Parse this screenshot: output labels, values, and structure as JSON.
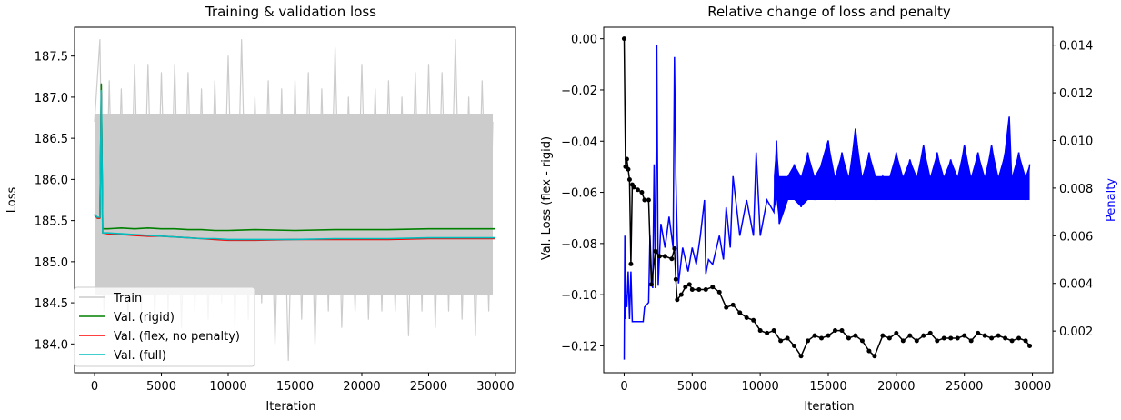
{
  "chart_data": [
    {
      "type": "line",
      "title": "Training & validation loss",
      "xlabel": "Iteration",
      "ylabel": "Loss",
      "xlim": [
        -1500,
        31500
      ],
      "ylim": [
        183.65,
        187.85
      ],
      "xticks": [
        0,
        5000,
        10000,
        15000,
        20000,
        25000,
        30000
      ],
      "xtick_labels": [
        "0",
        "5000",
        "10000",
        "15000",
        "20000",
        "25000",
        "30000"
      ],
      "yticks": [
        184.0,
        184.5,
        185.0,
        185.5,
        186.0,
        186.5,
        187.0,
        187.5
      ],
      "ytick_labels": [
        "184.0",
        "184.5",
        "185.0",
        "185.5",
        "186.0",
        "186.5",
        "187.0",
        "187.5"
      ],
      "legend_position": "lower-left",
      "series": [
        {
          "name": "Train",
          "color": "#cccccc",
          "x": [
            0,
            400,
            700,
            1100,
            1500,
            2000,
            2500,
            3000,
            3500,
            4000,
            4500,
            5000,
            5500,
            6000,
            6500,
            7000,
            7500,
            8000,
            8500,
            9000,
            9500,
            10000,
            10500,
            11000,
            11500,
            12000,
            12500,
            13000,
            13500,
            14000,
            14500,
            15000,
            15500,
            16000,
            16500,
            17000,
            17500,
            18000,
            18500,
            19000,
            19500,
            20000,
            20500,
            21000,
            21500,
            22000,
            22500,
            23000,
            23500,
            24000,
            24500,
            25000,
            25500,
            26000,
            26500,
            27000,
            27500,
            28000,
            28500,
            29000,
            29500,
            29800
          ],
          "y": [
            186.7,
            187.7,
            184.4,
            187.2,
            184.5,
            187.1,
            184.3,
            187.4,
            184.4,
            187.4,
            184.3,
            187.3,
            184.4,
            187.4,
            184.2,
            187.3,
            184.4,
            187.1,
            184.3,
            187.2,
            184.5,
            187.5,
            184.2,
            187.7,
            184.3,
            187.0,
            184.5,
            187.2,
            184.0,
            187.1,
            183.8,
            187.2,
            184.3,
            187.3,
            184.0,
            187.1,
            184.4,
            187.6,
            184.2,
            187.0,
            184.4,
            187.4,
            184.3,
            187.1,
            184.4,
            187.2,
            184.4,
            187.0,
            184.1,
            187.3,
            184.4,
            187.4,
            184.2,
            187.3,
            184.4,
            187.7,
            184.3,
            187.0,
            184.1,
            187.2,
            184.4,
            186.7
          ]
        },
        {
          "name": "Val. (rigid)",
          "color": "#008000",
          "x": [
            0,
            200,
            400,
            500,
            600,
            1000,
            2000,
            3000,
            4000,
            5000,
            6000,
            7000,
            8000,
            9000,
            10000,
            12000,
            15000,
            18000,
            20000,
            22000,
            25000,
            28000,
            30000
          ],
          "y": [
            185.57,
            185.53,
            185.53,
            187.16,
            185.4,
            185.4,
            185.41,
            185.4,
            185.41,
            185.4,
            185.4,
            185.39,
            185.39,
            185.38,
            185.38,
            185.39,
            185.38,
            185.39,
            185.39,
            185.39,
            185.4,
            185.4,
            185.4
          ]
        },
        {
          "name": "Val. (flex, no penalty)",
          "color": "#ff0000",
          "x": [
            0,
            200,
            400,
            500,
            600,
            1000,
            2000,
            3000,
            4000,
            5000,
            6000,
            7000,
            8000,
            9000,
            10000,
            12000,
            15000,
            18000,
            20000,
            22000,
            25000,
            28000,
            30000
          ],
          "y": [
            185.57,
            185.53,
            185.53,
            187.05,
            185.35,
            185.34,
            185.33,
            185.32,
            185.31,
            185.31,
            185.3,
            185.29,
            185.28,
            185.27,
            185.26,
            185.26,
            185.27,
            185.27,
            185.27,
            185.27,
            185.28,
            185.28,
            185.28
          ]
        },
        {
          "name": "Val. (full)",
          "color": "#00bfbf",
          "x": [
            0,
            200,
            400,
            500,
            600,
            1000,
            2000,
            3000,
            4000,
            5000,
            6000,
            7000,
            8000,
            9000,
            10000,
            12000,
            15000,
            18000,
            20000,
            22000,
            25000,
            28000,
            30000
          ],
          "y": [
            185.58,
            185.54,
            185.54,
            187.08,
            185.35,
            185.35,
            185.34,
            185.33,
            185.32,
            185.31,
            185.3,
            185.29,
            185.28,
            185.28,
            185.27,
            185.27,
            185.27,
            185.28,
            185.28,
            185.28,
            185.29,
            185.29,
            185.29
          ]
        }
      ]
    },
    {
      "type": "line",
      "title": "Relative change of loss and penalty",
      "xlabel": "Iteration",
      "ylabel": "Val. Loss (flex - rigid)",
      "ylabel_right": "Penalty",
      "xlim": [
        -1500,
        31500
      ],
      "ylim": [
        -0.1305,
        0.0045
      ],
      "ylim_right": [
        0.00025,
        0.01475
      ],
      "xticks": [
        0,
        5000,
        10000,
        15000,
        20000,
        25000,
        30000
      ],
      "xtick_labels": [
        "0",
        "5000",
        "10000",
        "15000",
        "20000",
        "25000",
        "30000"
      ],
      "yticks": [
        0.0,
        -0.02,
        -0.04,
        -0.06,
        -0.08,
        -0.1,
        -0.12
      ],
      "ytick_labels": [
        "0.00",
        "−0.02",
        "−0.04",
        "−0.06",
        "−0.08",
        "−0.10",
        "−0.12"
      ],
      "yticks_right": [
        0.002,
        0.004,
        0.006,
        0.008,
        0.01,
        0.012,
        0.014
      ],
      "ytick_right_labels": [
        "0.002",
        "0.004",
        "0.006",
        "0.008",
        "0.010",
        "0.012",
        "0.014"
      ],
      "series": [
        {
          "name": "Val. Loss (flex - rigid)",
          "color": "#000000",
          "marker": "dot",
          "axis": "left",
          "x": [
            0,
            100,
            200,
            300,
            400,
            500,
            600,
            700,
            1000,
            1300,
            1500,
            1800,
            2000,
            2300,
            2600,
            3000,
            3500,
            3700,
            3800,
            3900,
            4200,
            4500,
            4800,
            5000,
            5500,
            6000,
            6500,
            7000,
            7500,
            8000,
            8500,
            9000,
            9500,
            10000,
            10500,
            11000,
            11500,
            12000,
            12500,
            13000,
            13500,
            14000,
            14500,
            15000,
            15500,
            16000,
            16500,
            17000,
            17500,
            18000,
            18400,
            19000,
            19500,
            20000,
            20500,
            21000,
            21500,
            22000,
            22500,
            23000,
            23500,
            24000,
            24500,
            25000,
            25500,
            26000,
            26500,
            27000,
            27500,
            28000,
            28500,
            29000,
            29500,
            29800
          ],
          "y": [
            0.0,
            -0.05,
            -0.047,
            -0.051,
            -0.055,
            -0.088,
            -0.057,
            -0.058,
            -0.059,
            -0.06,
            -0.063,
            -0.063,
            -0.096,
            -0.083,
            -0.085,
            -0.085,
            -0.086,
            -0.082,
            -0.094,
            -0.102,
            -0.1,
            -0.097,
            -0.096,
            -0.098,
            -0.098,
            -0.098,
            -0.097,
            -0.099,
            -0.105,
            -0.104,
            -0.107,
            -0.109,
            -0.11,
            -0.114,
            -0.115,
            -0.114,
            -0.118,
            -0.117,
            -0.12,
            -0.124,
            -0.118,
            -0.116,
            -0.117,
            -0.116,
            -0.114,
            -0.114,
            -0.117,
            -0.116,
            -0.118,
            -0.122,
            -0.124,
            -0.116,
            -0.117,
            -0.115,
            -0.118,
            -0.116,
            -0.118,
            -0.116,
            -0.115,
            -0.118,
            -0.117,
            -0.117,
            -0.117,
            -0.116,
            -0.118,
            -0.115,
            -0.116,
            -0.117,
            -0.116,
            -0.117,
            -0.118,
            -0.117,
            -0.118,
            -0.12
          ]
        },
        {
          "name": "Penalty",
          "color": "#0000ff",
          "axis": "right",
          "x": [
            0,
            50,
            100,
            150,
            200,
            300,
            400,
            500,
            600,
            1000,
            1400,
            1500,
            1800,
            1900,
            2000,
            2100,
            2200,
            2300,
            2400,
            2500,
            2700,
            3000,
            3300,
            3600,
            3700,
            3800,
            3900,
            4000,
            4300,
            4700,
            5000,
            5300,
            5600,
            5900,
            6000,
            6200,
            6500,
            7000,
            7300,
            7500,
            7800,
            8000,
            8500,
            9000,
            9500,
            9700,
            10000,
            10500,
            11000,
            11200,
            11400,
            12000,
            12500,
            13000,
            13500,
            14000,
            14500,
            15000,
            15500,
            16000,
            16500,
            17000,
            17500,
            18000,
            18500,
            19000,
            19500,
            20000,
            20500,
            21000,
            21500,
            22000,
            22500,
            23000,
            23500,
            24000,
            24500,
            25000,
            25500,
            26000,
            26500,
            27000,
            27500,
            28000,
            28300,
            28500,
            29000,
            29500,
            29800
          ],
          "y": [
            0.0008,
            0.006,
            0.0025,
            0.0035,
            0.003,
            0.0045,
            0.0025,
            0.0045,
            0.0024,
            0.0024,
            0.0024,
            0.003,
            0.0032,
            0.006,
            0.0045,
            0.0038,
            0.009,
            0.0038,
            0.014,
            0.0039,
            0.0065,
            0.0055,
            0.0068,
            0.0055,
            0.0135,
            0.0085,
            0.006,
            0.004,
            0.0055,
            0.0045,
            0.0055,
            0.0048,
            0.006,
            0.0075,
            0.0044,
            0.005,
            0.0048,
            0.006,
            0.005,
            0.0072,
            0.0055,
            0.0085,
            0.006,
            0.0075,
            0.006,
            0.0095,
            0.006,
            0.0075,
            0.007,
            0.01,
            0.0065,
            0.0075,
            0.009,
            0.0072,
            0.0095,
            0.0075,
            0.009,
            0.01,
            0.0075,
            0.0095,
            0.008,
            0.0105,
            0.0078,
            0.0095,
            0.0075,
            0.0085,
            0.0078,
            0.0095,
            0.0078,
            0.0092,
            0.0082,
            0.0098,
            0.0078,
            0.0095,
            0.008,
            0.0092,
            0.008,
            0.0098,
            0.0082,
            0.0095,
            0.008,
            0.0098,
            0.008,
            0.0095,
            0.011,
            0.008,
            0.0095,
            0.0075,
            0.009
          ]
        }
      ]
    }
  ]
}
